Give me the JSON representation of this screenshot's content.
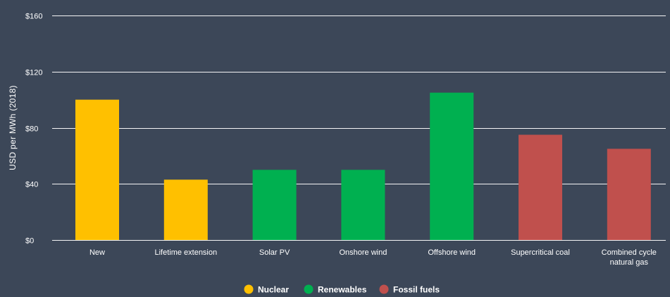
{
  "chart_data": {
    "type": "bar",
    "ylabel": "USD per MWh (2018)",
    "ylim": [
      0,
      160
    ],
    "yticks": [
      0,
      40,
      80,
      120,
      160
    ],
    "ytick_labels": [
      "$0",
      "$40",
      "$80",
      "$120",
      "$160"
    ],
    "grid": true,
    "legend_position": "bottom-center",
    "categories": [
      {
        "label_lines": [
          "New"
        ],
        "group": "Nuclear",
        "value": 100
      },
      {
        "label_lines": [
          "Lifetime extension"
        ],
        "group": "Nuclear",
        "value": 43
      },
      {
        "label_lines": [
          "Solar PV"
        ],
        "group": "Renewables",
        "value": 50
      },
      {
        "label_lines": [
          "Onshore wind"
        ],
        "group": "Renewables",
        "value": 50
      },
      {
        "label_lines": [
          "Offshore wind"
        ],
        "group": "Renewables",
        "value": 105
      },
      {
        "label_lines": [
          "Supercritical coal"
        ],
        "group": "Fossil fuels",
        "value": 75
      },
      {
        "label_lines": [
          "Combined cycle",
          "natural gas"
        ],
        "group": "Fossil fuels",
        "value": 65
      }
    ],
    "legend": [
      {
        "name": "Nuclear",
        "color": "#ffc000"
      },
      {
        "name": "Renewables",
        "color": "#00b050"
      },
      {
        "name": "Fossil fuels",
        "color": "#c0504d"
      }
    ]
  },
  "colors": {
    "background": "#3c4758",
    "text": "#ffffff",
    "grid": "#ffffff"
  }
}
